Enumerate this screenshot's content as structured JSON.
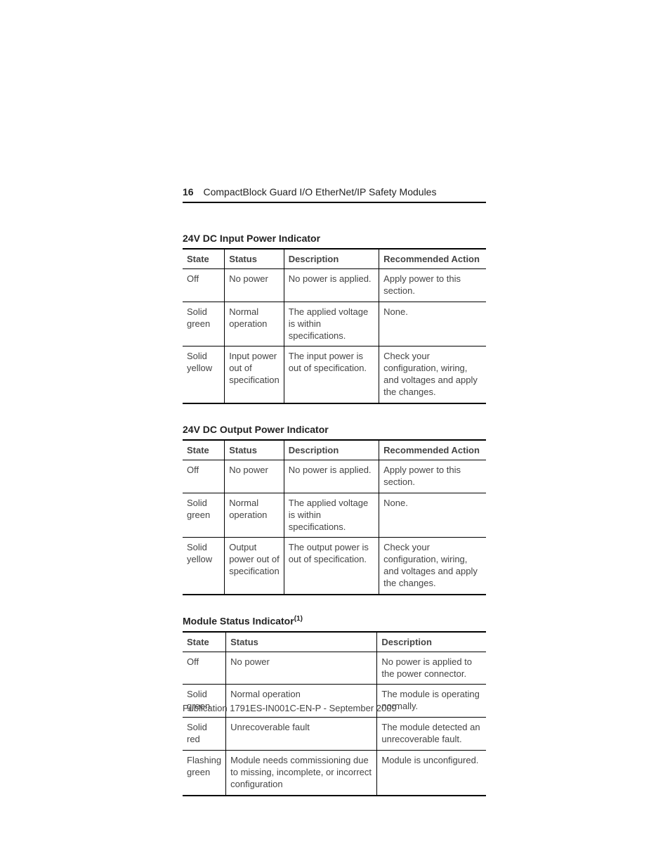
{
  "page": {
    "page_number": "16",
    "header_title": "CompactBlock Guard I/O EtherNet/IP Safety Modules",
    "publication": "Publication 1791ES-IN001C-EN-P  - September 2009"
  },
  "colors": {
    "text": "#333333",
    "border": "#000000",
    "background": "#ffffff"
  },
  "table_input": {
    "title": "24V DC Input Power Indicator",
    "headers": {
      "state": "State",
      "status": "Status",
      "description": "Description",
      "action": "Recommended Action"
    },
    "rows": [
      {
        "state": "Off",
        "status": "No power",
        "description": "No power is applied.",
        "action": "Apply power to this section."
      },
      {
        "state": "Solid green",
        "status": "Normal operation",
        "description": "The applied voltage is within specifications.",
        "action": "None."
      },
      {
        "state": "Solid yellow",
        "status": "Input power out of specification",
        "description": "The input power is out of specification.",
        "action": "Check your configuration, wiring, and voltages and apply the changes."
      }
    ]
  },
  "table_output": {
    "title": "24V DC Output Power Indicator",
    "headers": {
      "state": "State",
      "status": "Status",
      "description": "Description",
      "action": "Recommended Action"
    },
    "rows": [
      {
        "state": "Off",
        "status": "No power",
        "description": "No power is applied.",
        "action": "Apply power to this section."
      },
      {
        "state": "Solid green",
        "status": "Normal operation",
        "description": "The applied voltage is within specifications.",
        "action": "None."
      },
      {
        "state": "Solid yellow",
        "status": "Output power out of specification",
        "description": "The output power is out of specification.",
        "action": "Check your configuration, wiring, and voltages and apply the changes."
      }
    ]
  },
  "table_module": {
    "title": "Module Status Indicator",
    "title_sup": "(1)",
    "headers": {
      "state": "State",
      "status": "Status",
      "description": "Description"
    },
    "rows": [
      {
        "state": "Off",
        "status": "No power",
        "description": "No power is applied to the power connector."
      },
      {
        "state": "Solid green",
        "status": "Normal operation",
        "description": "The module is operating normally."
      },
      {
        "state": "Solid red",
        "status": "Unrecoverable fault",
        "description": "The module  detected an unrecoverable fault."
      },
      {
        "state": "Flashing green",
        "status": "Module needs commissioning due to missing, incomplete, or incorrect configuration",
        "description": "Module is unconfigured."
      }
    ]
  }
}
